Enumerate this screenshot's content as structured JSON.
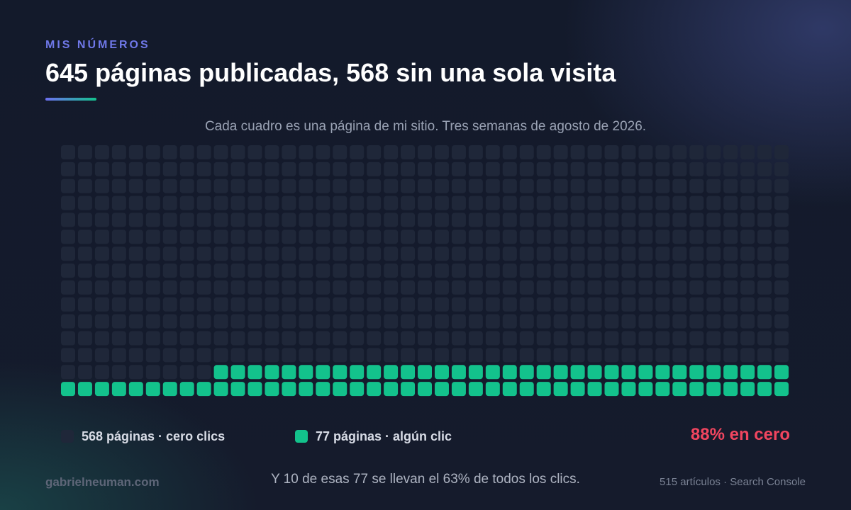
{
  "header": {
    "eyebrow": "MIS NÚMEROS",
    "title": "645 páginas publicadas, 568 sin una sola visita",
    "subtitle": "Cada cuadro es una página de mi sitio. Tres semanas de agosto de 2026."
  },
  "chart_data": {
    "type": "waffle",
    "total": 645,
    "categories": [
      {
        "name": "568 páginas · cero clics",
        "count": 568,
        "color": "#1f2739"
      },
      {
        "name": "77 páginas · algún clic",
        "count": 77,
        "color": "#13c28c"
      }
    ],
    "highlight": "88% en cero"
  },
  "legend": {
    "zero_label": "568 páginas · cero clics",
    "click_label": "77 páginas · algún clic",
    "zero_color": "#1f2739",
    "click_color": "#13c28c"
  },
  "footer": {
    "site": "gabrielneuman.com",
    "note": "Y 10 de esas 77 se llevan el 63% de todos los clics.",
    "source": "515 artículos · Search Console"
  },
  "colors": {
    "accent_purple": "#6f78e8",
    "accent_green": "#13c28c",
    "alert_red": "#f0455f"
  }
}
